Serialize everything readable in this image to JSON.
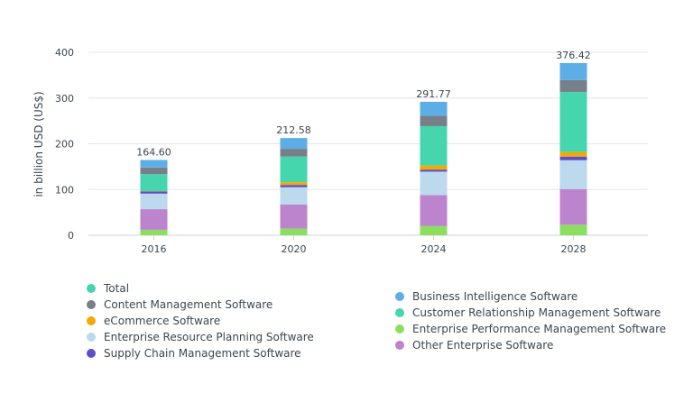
{
  "chart_data": {
    "type": "bar",
    "stacked": true,
    "title": "",
    "xlabel": "",
    "ylabel": "in billion USD (US$)",
    "ylim": [
      0,
      400
    ],
    "yticks": [
      "0",
      "100",
      "200",
      "300",
      "400"
    ],
    "grid": true,
    "legend_position": "bottom",
    "categories": [
      "2016",
      "2020",
      "2024",
      "2028"
    ],
    "totals": [
      "164.60",
      "212.58",
      "291.77",
      "376.42"
    ],
    "series": [
      {
        "name": "Enterprise Performance Management Software",
        "color": "#8bde5e",
        "values": [
          12,
          14.5,
          20,
          23
        ]
      },
      {
        "name": "Other Enterprise Software",
        "color": "#bb84cc",
        "values": [
          45,
          52.5,
          68,
          78
        ]
      },
      {
        "name": "Enterprise Resource Planning Software",
        "color": "#bcd9ee",
        "values": [
          34,
          38,
          51,
          63
        ]
      },
      {
        "name": "Supply Chain Management Software",
        "color": "#5d4fc9",
        "values": [
          5,
          5,
          4.5,
          8
        ]
      },
      {
        "name": "eCommerce Software",
        "color": "#f2a900",
        "values": [
          0.6,
          6,
          9,
          10
        ]
      },
      {
        "name": "Customer Relationship Management Software",
        "color": "#45d6ae",
        "values": [
          37,
          56,
          86,
          131
        ]
      },
      {
        "name": "Content Management Software",
        "color": "#77808a",
        "values": [
          14.6,
          17,
          22.5,
          26.5
        ]
      },
      {
        "name": "Business Intelligence Software",
        "color": "#5daee6",
        "values": [
          16.4,
          23.58,
          30.77,
          36.92
        ]
      }
    ],
    "legend": {
      "left": [
        {
          "name": "Total",
          "color": "#45d6ae"
        },
        {
          "name": "Content Management Software",
          "color": "#77808a"
        },
        {
          "name": "eCommerce Software",
          "color": "#f2a900"
        },
        {
          "name": "Enterprise Resource Planning Software",
          "color": "#bcd9ee"
        },
        {
          "name": "Supply Chain Management Software",
          "color": "#5d4fc9"
        }
      ],
      "right": [
        {
          "name": "Business Intelligence Software",
          "color": "#5daee6"
        },
        {
          "name": "Customer Relationship Management Software",
          "color": "#45d6ae"
        },
        {
          "name": "Enterprise Performance Management Software",
          "color": "#8bde5e"
        },
        {
          "name": "Other Enterprise Software",
          "color": "#bb84cc"
        }
      ]
    }
  }
}
